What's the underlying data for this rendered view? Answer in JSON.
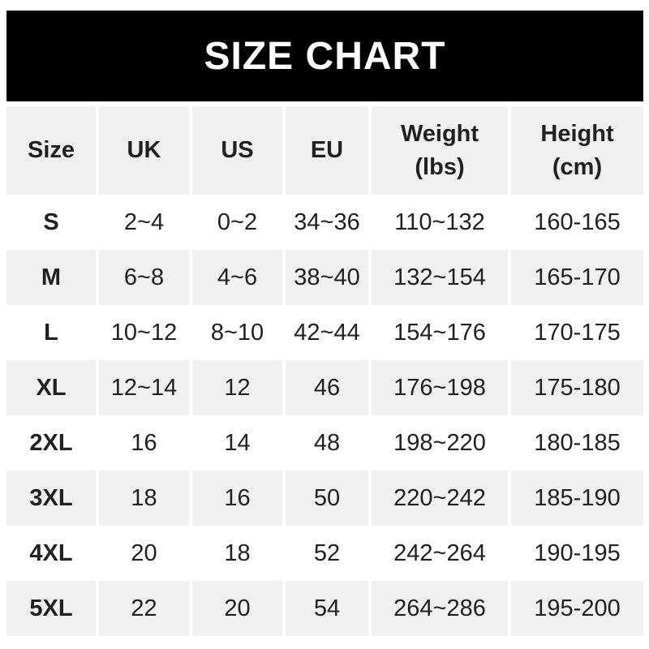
{
  "banner": {
    "title": "SIZE CHART"
  },
  "table_header": {
    "cells": [
      {
        "line1": "Size",
        "line2": ""
      },
      {
        "line1": "UK",
        "line2": ""
      },
      {
        "line1": "US",
        "line2": ""
      },
      {
        "line1": "EU",
        "line2": ""
      },
      {
        "line1": "Weight",
        "line2": "(lbs)"
      },
      {
        "line1": "Height",
        "line2": "(cm)"
      }
    ]
  },
  "chart_data": {
    "type": "table",
    "title": "SIZE CHART",
    "columns": [
      "Size",
      "UK",
      "US",
      "EU",
      "Weight (lbs)",
      "Height (cm)"
    ],
    "rows": [
      [
        "S",
        "2~4",
        "0~2",
        "34~36",
        "110~132",
        "160-165"
      ],
      [
        "M",
        "6~8",
        "4~6",
        "38~40",
        "132~154",
        "165-170"
      ],
      [
        "L",
        "10~12",
        "8~10",
        "42~44",
        "154~176",
        "170-175"
      ],
      [
        "XL",
        "12~14",
        "12",
        "46",
        "176~198",
        "175-180"
      ],
      [
        "2XL",
        "16",
        "14",
        "48",
        "198~220",
        "180-185"
      ],
      [
        "3XL",
        "18",
        "16",
        "50",
        "220~242",
        "185-190"
      ],
      [
        "4XL",
        "20",
        "18",
        "52",
        "242~264",
        "190-195"
      ],
      [
        "5XL",
        "22",
        "20",
        "54",
        "264~286",
        "195-200"
      ]
    ],
    "layout": {
      "striped_rows": true,
      "header_background": "#f0f0f0",
      "stripe_background": "#f0f0f0",
      "row_background": "#ffffff"
    }
  },
  "colors": {
    "banner_bg": "#000000",
    "banner_text": "#ffffff",
    "row_stripe": "#f0f0f0",
    "row_alt": "#ffffff",
    "cell_text": "#212121"
  }
}
